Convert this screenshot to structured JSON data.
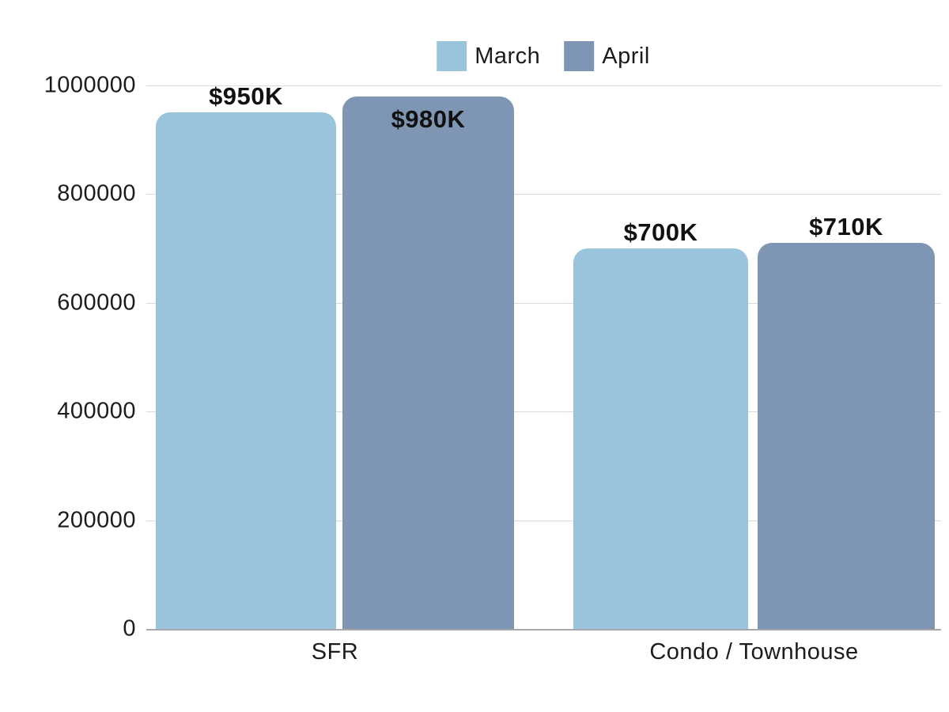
{
  "chart_data": {
    "type": "bar",
    "title": "",
    "categories": [
      "SFR",
      "Condo / Townhouse"
    ],
    "series": [
      {
        "name": "March",
        "color": "#9AC4DB",
        "values": [
          950000,
          700000
        ],
        "labels": [
          "$950K",
          "$700K"
        ]
      },
      {
        "name": "April",
        "color": "#7E96B3",
        "values": [
          980000,
          710000
        ],
        "labels": [
          "$980K",
          "$710K"
        ]
      }
    ],
    "xlabel": "",
    "ylabel": "",
    "ylim": [
      0,
      1000000
    ],
    "yticks": [
      0,
      200000,
      400000,
      600000,
      800000,
      1000000
    ],
    "ytick_labels": [
      "0",
      "200000",
      "400000",
      "600000",
      "800000",
      "1000000"
    ],
    "grid": "horizontal",
    "legend_position": "top-center",
    "colors": {
      "march": "#9AC4DB",
      "april": "#7E96B3",
      "gridline": "#dbdbdb",
      "axis_line": "#a6a8ad",
      "text": "#1c1c1c",
      "background": "#ffffff"
    }
  }
}
